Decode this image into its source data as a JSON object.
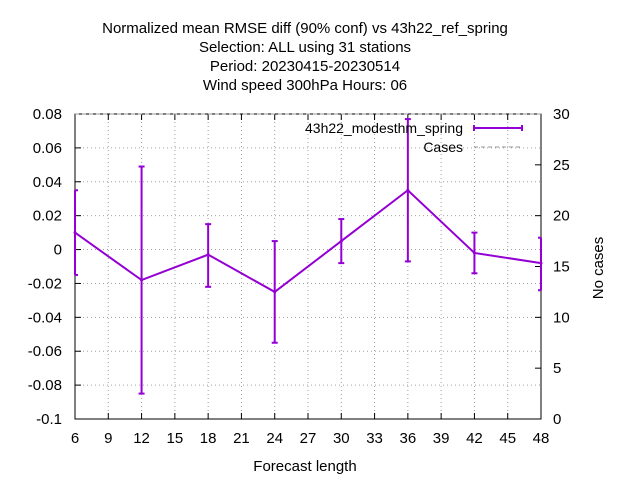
{
  "chart_data": {
    "type": "line",
    "title_lines": [
      "Normalized mean RMSE diff (90% conf) vs 43h22_ref_spring",
      "Selection: ALL using    31 stations",
      "Period: 20230415-20230514",
      "Wind speed 300hPa   Hours:  06"
    ],
    "xlabel": "Forecast length",
    "ylabel": "",
    "y2label": "No cases",
    "xlim": [
      6,
      48
    ],
    "ylim": [
      -0.1,
      0.08
    ],
    "y2lim": [
      0,
      30
    ],
    "xticks": [
      "6",
      "9",
      "12",
      "15",
      "18",
      "21",
      "24",
      "27",
      "30",
      "33",
      "36",
      "39",
      "42",
      "45",
      "48"
    ],
    "yticks": [
      "0.08",
      "0.06",
      "0.04",
      "0.02",
      "0",
      "-0.02",
      "-0.04",
      "-0.06",
      "-0.08",
      "-0.1"
    ],
    "y2ticks": [
      "30",
      "25",
      "20",
      "15",
      "10",
      "5",
      "0"
    ],
    "grid": true,
    "legend_position": "top-right",
    "series": [
      {
        "name": "43h22_modesthm_spring",
        "color": "#9400d3",
        "x": [
          6,
          12,
          18,
          24,
          30,
          36,
          42,
          48
        ],
        "y": [
          0.01,
          -0.018,
          -0.003,
          -0.025,
          0.005,
          0.035,
          -0.002,
          -0.008
        ],
        "err_low": [
          -0.015,
          -0.085,
          -0.022,
          -0.055,
          -0.008,
          -0.007,
          -0.014,
          -0.024
        ],
        "err_high": [
          0.035,
          0.049,
          0.015,
          0.005,
          0.018,
          0.077,
          0.01,
          0.007
        ]
      },
      {
        "name": "Cases",
        "color": "#999999",
        "axis": "y2",
        "x": [
          6,
          12,
          18,
          24,
          30,
          36,
          42,
          48
        ],
        "y": [
          30,
          30,
          30,
          30,
          30,
          30,
          30,
          30
        ]
      }
    ]
  }
}
